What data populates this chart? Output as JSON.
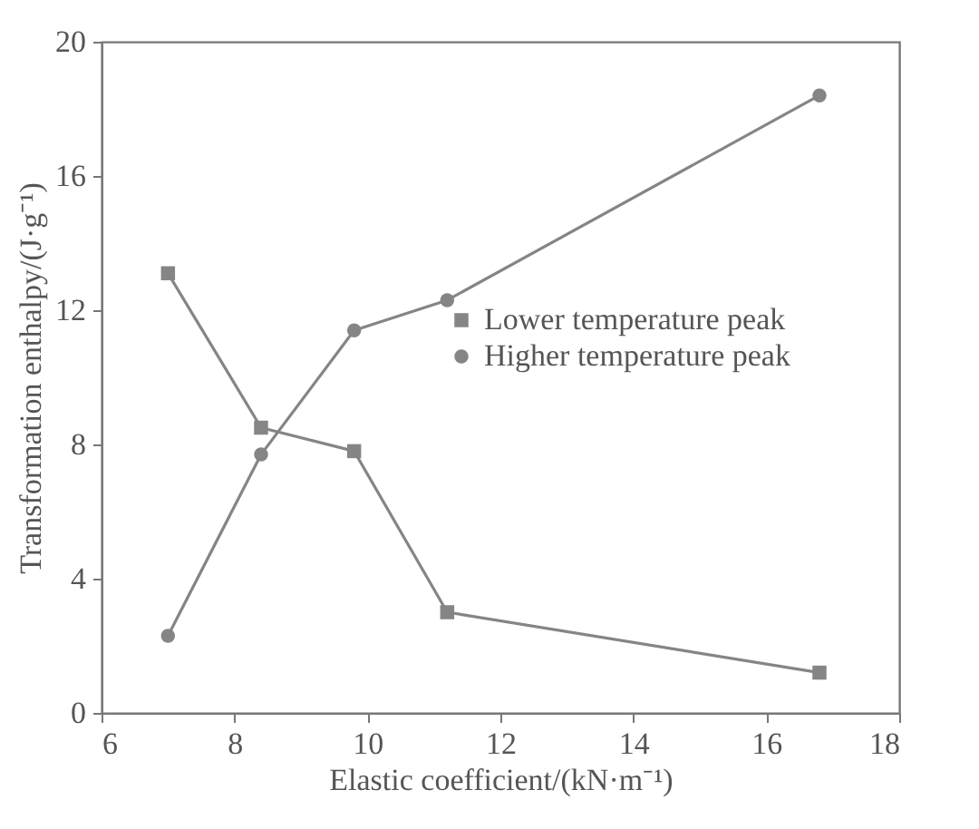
{
  "chart_data": {
    "type": "line",
    "xlabel": "Elastic coefficient/(kN·m⁻¹)",
    "ylabel": "Transformation enthalpy/(J·g⁻¹)",
    "x": [
      7.0,
      8.4,
      9.8,
      11.2,
      16.8
    ],
    "series": [
      {
        "name": "Lower temperature peak",
        "color": "#858585",
        "marker": "square",
        "values": [
          13.1,
          8.5,
          7.8,
          3.0,
          1.2
        ]
      },
      {
        "name": "Higher temperature peak",
        "color": "#858585",
        "marker": "circle",
        "values": [
          2.3,
          7.7,
          11.4,
          12.3,
          18.4
        ]
      }
    ],
    "xlim": [
      6,
      18
    ],
    "xticks": [
      6,
      8,
      10,
      12,
      14,
      16,
      18
    ],
    "ylim": [
      0,
      20
    ],
    "yticks": [
      0,
      4,
      8,
      12,
      16,
      20
    ],
    "grid": false,
    "legend": "right",
    "line_style": "solid"
  }
}
